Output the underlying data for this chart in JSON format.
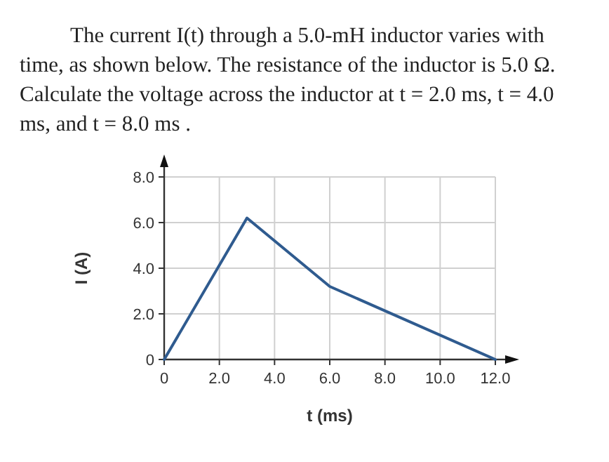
{
  "chart_data": {
    "type": "line",
    "title": "The current I(t) through a 5.0-mH inductor varies with time, as shown below. The resistance of the inductor is 5.0 Ω. Calculate the voltage across the inductor at t = 2.0 ms, t = 4.0 ms, and t = 8.0 ms .",
    "xlabel": "t (ms)",
    "ylabel": "I (A)",
    "x": [
      0,
      3,
      6,
      12
    ],
    "series": [
      {
        "color": "#2f5b8f",
        "values": [
          0,
          6.2,
          3.2,
          0
        ]
      }
    ],
    "xlim": [
      0,
      12
    ],
    "ylim": [
      0,
      8
    ],
    "xticks": [
      0,
      {
        "value": 2,
        "label": "2.0"
      },
      {
        "value": 4,
        "label": "4.0"
      },
      {
        "value": 6,
        "label": "6.0"
      },
      {
        "value": 8,
        "label": "8.0"
      },
      {
        "value": 10,
        "label": "10.0"
      },
      {
        "value": 12,
        "label": "12.0"
      }
    ],
    "yticks": [
      0,
      {
        "value": 2,
        "label": "2.0"
      },
      {
        "value": 4,
        "label": "4.0"
      },
      {
        "value": 6,
        "label": "6.0"
      },
      {
        "value": 8,
        "label": "8.0"
      }
    ],
    "grid": true
  }
}
